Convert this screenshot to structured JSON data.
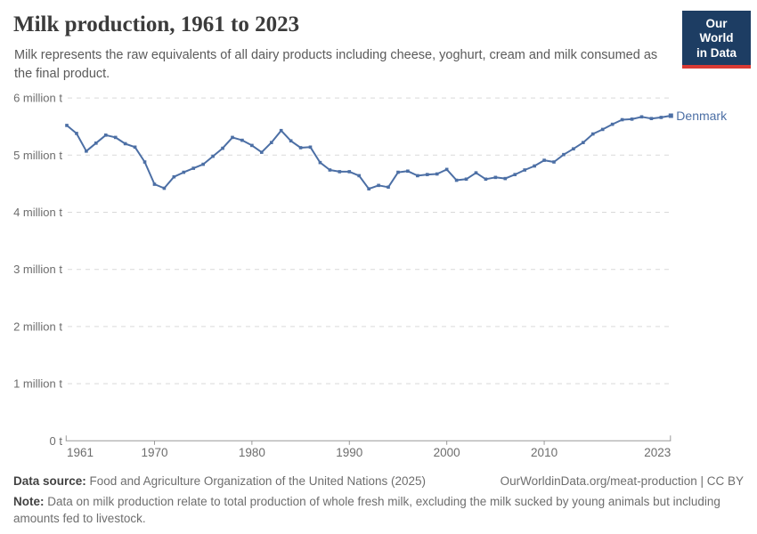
{
  "header": {
    "title": "Milk production, 1961 to 2023",
    "subtitle": "Milk represents the raw equivalents of all dairy products including cheese, yoghurt, cream and milk consumed as the final product.",
    "logo": {
      "line1": "Our World",
      "line2": "in Data",
      "bg_color": "#1d3d63",
      "accent_color": "#d93a34"
    }
  },
  "chart_data": {
    "type": "line",
    "title": "Milk production, 1961 to 2023",
    "unit": "million tonnes",
    "ylabel": "",
    "xlabel": "",
    "ylim": [
      0,
      6
    ],
    "xlim": [
      1961,
      2023
    ],
    "grid": "horizontal-dashed",
    "legend_position": "series-end-label",
    "colors": {
      "series": "#4c6fa5",
      "gridline": "#d9d9d9",
      "axis": "#999999",
      "tick_text": "#6d6d6d"
    },
    "yticks": [
      {
        "value": 0,
        "label": "0 t"
      },
      {
        "value": 1,
        "label": "1 million t"
      },
      {
        "value": 2,
        "label": "2 million t"
      },
      {
        "value": 3,
        "label": "3 million t"
      },
      {
        "value": 4,
        "label": "4 million t"
      },
      {
        "value": 5,
        "label": "5 million t"
      },
      {
        "value": 6,
        "label": "6 million t"
      }
    ],
    "xticks": [
      {
        "value": 1961,
        "label": "1961"
      },
      {
        "value": 1970,
        "label": "1970"
      },
      {
        "value": 1980,
        "label": "1980"
      },
      {
        "value": 1990,
        "label": "1990"
      },
      {
        "value": 2000,
        "label": "2000"
      },
      {
        "value": 2010,
        "label": "2010"
      },
      {
        "value": 2023,
        "label": "2023"
      }
    ],
    "x": [
      1961,
      1962,
      1963,
      1964,
      1965,
      1966,
      1967,
      1968,
      1969,
      1970,
      1971,
      1972,
      1973,
      1974,
      1975,
      1976,
      1977,
      1978,
      1979,
      1980,
      1981,
      1982,
      1983,
      1984,
      1985,
      1986,
      1987,
      1988,
      1989,
      1990,
      1991,
      1992,
      1993,
      1994,
      1995,
      1996,
      1997,
      1998,
      1999,
      2000,
      2001,
      2002,
      2003,
      2004,
      2005,
      2006,
      2007,
      2008,
      2009,
      2010,
      2011,
      2012,
      2013,
      2014,
      2015,
      2016,
      2017,
      2018,
      2019,
      2020,
      2021,
      2022,
      2023
    ],
    "series": [
      {
        "name": "Denmark",
        "color": "#4c6fa5",
        "values": [
          5.52,
          5.38,
          5.07,
          5.21,
          5.35,
          5.31,
          5.2,
          5.14,
          4.88,
          4.49,
          4.42,
          4.62,
          4.7,
          4.77,
          4.84,
          4.98,
          5.12,
          5.31,
          5.26,
          5.17,
          5.05,
          5.22,
          5.43,
          5.25,
          5.13,
          5.14,
          4.87,
          4.74,
          4.71,
          4.71,
          4.64,
          4.41,
          4.47,
          4.44,
          4.7,
          4.72,
          4.64,
          4.66,
          4.67,
          4.75,
          4.56,
          4.58,
          4.69,
          4.58,
          4.61,
          4.59,
          4.66,
          4.74,
          4.81,
          4.91,
          4.88,
          5.01,
          5.11,
          5.22,
          5.37,
          5.45,
          5.54,
          5.62,
          5.63,
          5.67,
          5.64,
          5.66,
          5.69
        ]
      }
    ]
  },
  "footer": {
    "source_label": "Data source:",
    "source_text": "Food and Agriculture Organization of the United Nations (2025)",
    "link_text": "OurWorldinData.org/meat-production | CC BY",
    "note_label": "Note:",
    "note_text": "Data on milk production relate to total production of whole fresh milk, excluding the milk sucked by young animals but including amounts fed to livestock."
  }
}
